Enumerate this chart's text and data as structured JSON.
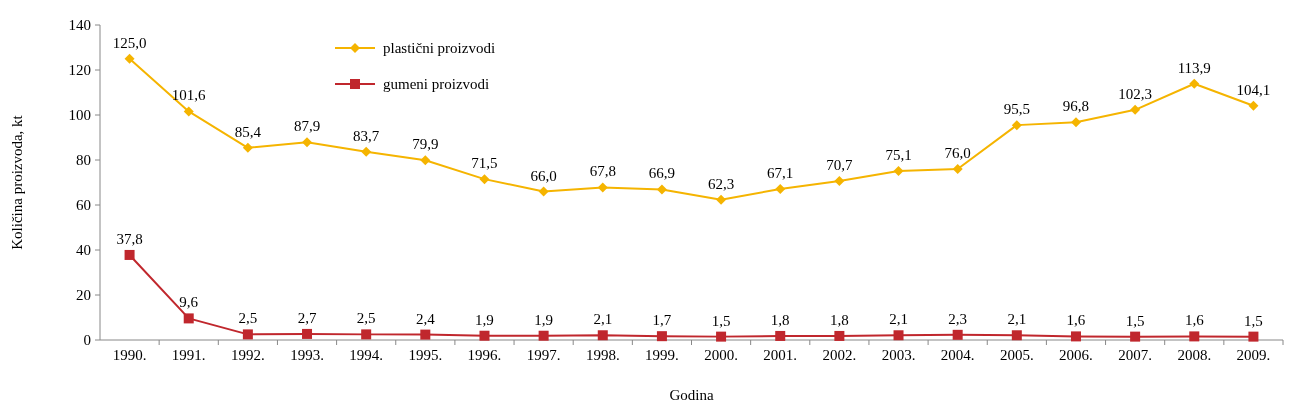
{
  "chart_data": {
    "type": "line",
    "xlabel": "Godina",
    "ylabel": "Količina proizvoda, kt",
    "categories": [
      "1990.",
      "1991.",
      "1992.",
      "1993.",
      "1994.",
      "1995.",
      "1996.",
      "1997.",
      "1998.",
      "1999.",
      "2000.",
      "2001.",
      "2002.",
      "2003.",
      "2004.",
      "2005.",
      "2006.",
      "2007.",
      "2008.",
      "2009."
    ],
    "series": [
      {
        "name": "plastični proizvodi",
        "color": "#f5b400",
        "marker": "diamond",
        "values": [
          125.0,
          101.6,
          85.4,
          87.9,
          83.7,
          79.9,
          71.5,
          66.0,
          67.8,
          66.9,
          62.3,
          67.1,
          70.7,
          75.1,
          76.0,
          95.5,
          96.8,
          102.3,
          113.9,
          104.1
        ],
        "value_labels": [
          "125,0",
          "101,6",
          "85,4",
          "87,9",
          "83,7",
          "79,9",
          "71,5",
          "66,0",
          "67,8",
          "66,9",
          "62,3",
          "67,1",
          "70,7",
          "75,1",
          "76,0",
          "95,5",
          "96,8",
          "102,3",
          "113,9",
          "104,1"
        ]
      },
      {
        "name": "gumeni proizvodi",
        "color": "#c0272d",
        "marker": "square",
        "values": [
          37.8,
          9.6,
          2.5,
          2.7,
          2.5,
          2.4,
          1.9,
          1.9,
          2.1,
          1.7,
          1.5,
          1.8,
          1.8,
          2.1,
          2.3,
          2.1,
          1.6,
          1.5,
          1.6,
          1.5
        ],
        "value_labels": [
          "37,8",
          "9,6",
          "2,5",
          "2,7",
          "2,5",
          "2,4",
          "1,9",
          "1,9",
          "2,1",
          "1,7",
          "1,5",
          "1,8",
          "1,8",
          "2,1",
          "2,3",
          "2,1",
          "1,6",
          "1,5",
          "1,6",
          "1,5"
        ]
      }
    ],
    "ylim": [
      0,
      140
    ],
    "yticks": [
      0,
      20,
      40,
      60,
      80,
      100,
      120,
      140
    ],
    "grid": false,
    "legend": "top left"
  }
}
